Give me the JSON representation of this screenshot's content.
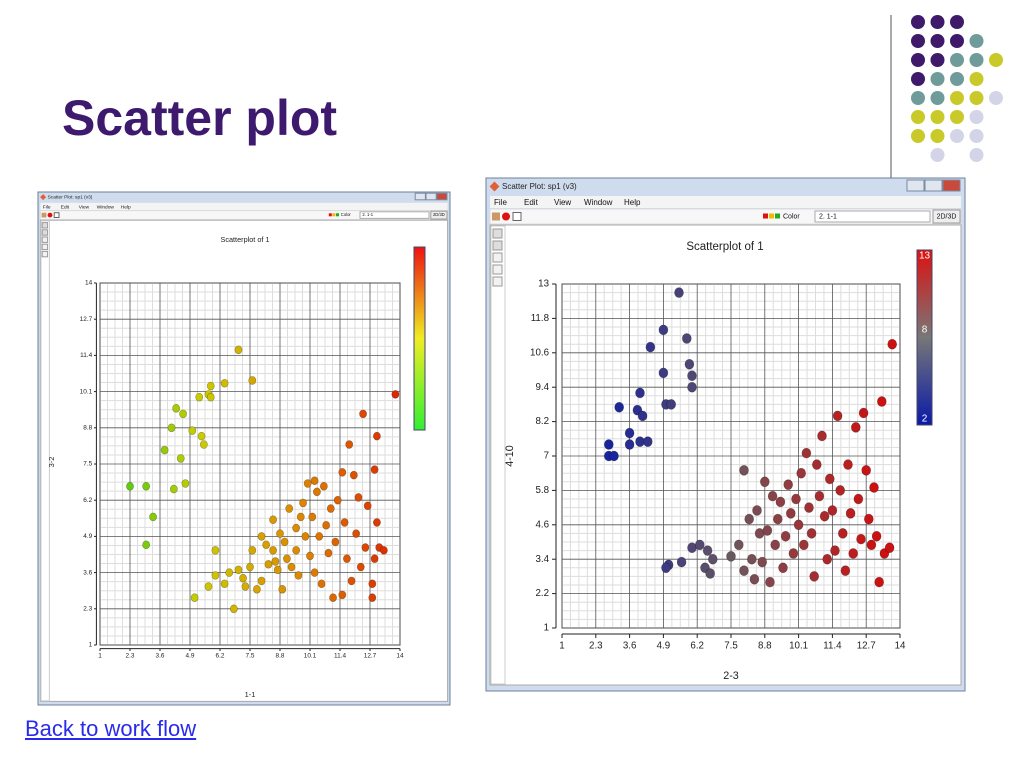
{
  "slide_title": "Scatter plot",
  "link": "Back to work flow",
  "chart_data": [
    {
      "type": "scatter",
      "window_title": "Scatter Plot: sp1 (v3)",
      "menu": [
        "File",
        "Edit",
        "View",
        "Window",
        "Help"
      ],
      "color_label": "Color",
      "selection": "2. 1-1",
      "mode_button": "2D/3D",
      "title": "Scatterplot of 1",
      "x_label": "1-1",
      "y_label": "3-2",
      "xlim": [
        1,
        14
      ],
      "ylim": [
        1,
        14
      ],
      "xticks": [
        1,
        2.3,
        3.6,
        4.9,
        6.2,
        7.5,
        8.8,
        10.1,
        11.4,
        12.7,
        14
      ],
      "yticks": [
        1,
        2.3,
        3.6,
        4.9,
        6.2,
        7.5,
        8.8,
        10.1,
        11.4,
        12.7,
        14
      ],
      "grid": true,
      "color_by": "x",
      "colorscale": [
        "#33cc11",
        "#cccc00",
        "#dd8800",
        "#dd2200"
      ],
      "x": [
        2.3,
        3.0,
        3.3,
        3.0,
        3.8,
        4.2,
        4.5,
        4.3,
        4.6,
        4.7,
        4.1,
        5.0,
        5.3,
        5.4,
        5.5,
        5.7,
        5.8,
        5.8,
        6.4,
        7.0,
        7.6,
        6.0,
        5.7,
        6.0,
        5.1,
        6.4,
        6.6,
        6.8,
        7.0,
        7.2,
        7.3,
        7.5,
        7.6,
        7.8,
        8.0,
        8.2,
        8.3,
        8.5,
        8.6,
        8.7,
        8.8,
        8.9,
        9.0,
        9.1,
        9.2,
        9.3,
        9.5,
        9.5,
        9.6,
        9.8,
        9.9,
        10.0,
        10.1,
        10.2,
        10.3,
        10.4,
        10.5,
        10.6,
        10.7,
        10.8,
        10.9,
        11.0,
        11.1,
        11.2,
        11.3,
        11.5,
        11.6,
        11.7,
        11.8,
        11.9,
        12.0,
        12.1,
        12.2,
        12.3,
        12.4,
        12.5,
        12.6,
        12.8,
        12.8,
        12.9,
        13.0,
        13.0,
        13.1,
        13.3,
        13.8,
        12.9,
        11.5,
        10.3,
        9.7,
        8.5,
        8.0
      ],
      "y": [
        6.7,
        6.7,
        5.6,
        4.6,
        8.0,
        6.6,
        7.7,
        9.5,
        9.3,
        6.8,
        8.8,
        8.7,
        9.9,
        8.5,
        8.2,
        10.0,
        9.9,
        10.3,
        10.4,
        11.6,
        10.5,
        4.4,
        3.1,
        3.5,
        2.7,
        3.2,
        3.6,
        2.3,
        3.7,
        3.4,
        3.1,
        3.8,
        4.4,
        3.0,
        3.3,
        4.6,
        3.9,
        4.4,
        4.0,
        3.7,
        5.0,
        3.0,
        4.7,
        4.1,
        5.9,
        3.8,
        5.2,
        4.4,
        3.5,
        6.1,
        4.9,
        6.8,
        4.2,
        5.6,
        3.6,
        6.5,
        4.9,
        3.2,
        6.7,
        5.3,
        4.3,
        5.9,
        2.7,
        4.7,
        6.2,
        2.8,
        5.4,
        4.1,
        8.2,
        3.3,
        7.1,
        5.0,
        6.3,
        3.8,
        9.3,
        4.5,
        6.0,
        2.7,
        3.2,
        4.1,
        5.4,
        8.5,
        4.5,
        4.4,
        10.0,
        7.3,
        7.2,
        6.9,
        5.6,
        5.5,
        4.9
      ],
      "colorbar": {
        "colors": [
          "#33ee33",
          "#eeee22",
          "#ee1111"
        ]
      }
    },
    {
      "type": "scatter",
      "window_title": "Scatter Plot: sp1 (v3)",
      "menu": [
        "File",
        "Edit",
        "View",
        "Window",
        "Help"
      ],
      "color_label": "Color",
      "selection": "2. 1-1",
      "mode_button": "2D/3D",
      "title": "Scatterplot of 1",
      "x_label": "2-3",
      "y_label": "4-10",
      "xlim": [
        1,
        14
      ],
      "ylim": [
        1,
        13
      ],
      "xticks": [
        1,
        2.3,
        3.6,
        4.9,
        6.2,
        7.5,
        8.8,
        10.1,
        11.4,
        12.7,
        14
      ],
      "yticks": [
        1,
        2.2,
        3.4,
        4.6,
        5.8,
        7,
        8.2,
        9.4,
        10.6,
        11.8,
        13
      ],
      "grid": true,
      "color_by": "x",
      "colorscale": [
        "#0a1aa8",
        "#6a5860",
        "#cc1111"
      ],
      "x": [
        2.8,
        2.8,
        3.0,
        3.2,
        3.6,
        3.6,
        3.9,
        4.0,
        4.1,
        4.3,
        4.0,
        4.4,
        4.9,
        4.9,
        5.0,
        5.2,
        5.5,
        5.8,
        5.9,
        6.0,
        6.0,
        5.1,
        5.0,
        5.6,
        6.0,
        6.3,
        6.5,
        6.6,
        6.8,
        6.7,
        7.5,
        7.8,
        8.0,
        8.0,
        8.2,
        8.3,
        8.4,
        8.5,
        8.6,
        8.7,
        8.8,
        8.9,
        9.0,
        9.1,
        9.2,
        9.3,
        9.4,
        9.5,
        9.6,
        9.7,
        9.8,
        9.9,
        10.0,
        10.1,
        10.2,
        10.3,
        10.4,
        10.5,
        10.6,
        10.7,
        10.8,
        10.9,
        11.0,
        11.1,
        11.2,
        11.3,
        11.4,
        11.5,
        11.6,
        11.7,
        11.8,
        11.9,
        12.0,
        12.1,
        12.2,
        12.3,
        12.4,
        12.5,
        12.6,
        12.7,
        12.8,
        12.9,
        13.0,
        13.1,
        13.2,
        13.3,
        13.4,
        13.6,
        13.7
      ],
      "y": [
        7.4,
        7.0,
        7.0,
        8.7,
        7.8,
        7.4,
        8.6,
        7.5,
        8.4,
        7.5,
        9.2,
        10.8,
        11.4,
        9.9,
        8.8,
        8.8,
        12.7,
        11.1,
        10.2,
        9.8,
        9.4,
        3.2,
        3.1,
        3.3,
        3.8,
        3.9,
        3.1,
        3.7,
        3.4,
        2.9,
        3.5,
        3.9,
        6.5,
        3.0,
        4.8,
        3.4,
        2.7,
        5.1,
        4.3,
        3.3,
        6.1,
        4.4,
        2.6,
        5.6,
        3.9,
        4.8,
        5.4,
        3.1,
        4.2,
        6.0,
        5.0,
        3.6,
        5.5,
        4.6,
        6.4,
        3.9,
        7.1,
        5.2,
        4.3,
        2.8,
        6.7,
        5.6,
        7.7,
        4.9,
        3.4,
        6.2,
        5.1,
        3.7,
        8.4,
        5.8,
        4.3,
        3.0,
        6.7,
        5.0,
        3.6,
        8.0,
        5.5,
        4.1,
        8.5,
        6.5,
        4.8,
        3.9,
        5.9,
        4.2,
        2.6,
        8.9,
        3.6,
        3.8,
        10.9
      ],
      "colorbar": {
        "colors": [
          "#0a1aa8",
          "#777777",
          "#dd1111"
        ],
        "ticks": [
          2,
          8,
          13
        ]
      }
    }
  ]
}
